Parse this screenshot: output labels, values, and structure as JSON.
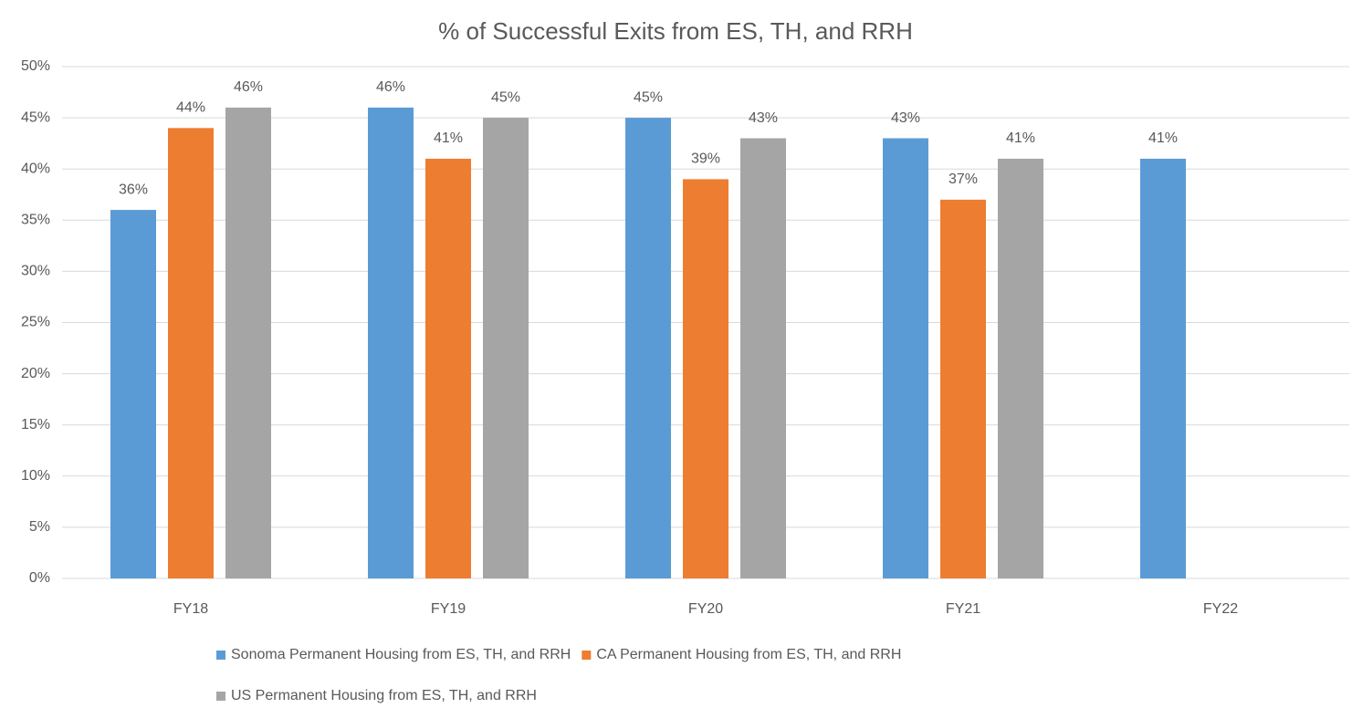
{
  "chart_data": {
    "type": "bar",
    "title": "% of Successful Exits from ES, TH, and RRH",
    "categories": [
      "FY18",
      "FY19",
      "FY20",
      "FY21",
      "FY22"
    ],
    "series": [
      {
        "name": "Sonoma Permanent Housing from ES, TH, and RRH",
        "color": "#5b9bd5",
        "values": [
          36,
          46,
          45,
          43,
          41
        ],
        "value_labels": [
          "36%",
          "46%",
          "45%",
          "43%",
          "41%"
        ]
      },
      {
        "name": "CA Permanent Housing from ES, TH, and RRH",
        "color": "#ed7d31",
        "values": [
          44,
          41,
          39,
          37,
          null
        ],
        "value_labels": [
          "44%",
          "41%",
          "39%",
          "37%",
          null
        ]
      },
      {
        "name": "US Permanent Housing from ES, TH, and RRH",
        "color": "#a5a5a5",
        "values": [
          46,
          45,
          43,
          41,
          null
        ],
        "value_labels": [
          "46%",
          "45%",
          "43%",
          "41%",
          null
        ]
      }
    ],
    "ylim": [
      0,
      50
    ],
    "yticks": [
      {
        "value": 0,
        "label": "0%"
      },
      {
        "value": 5,
        "label": "5%"
      },
      {
        "value": 10,
        "label": "10%"
      },
      {
        "value": 15,
        "label": "15%"
      },
      {
        "value": 20,
        "label": "20%"
      },
      {
        "value": 25,
        "label": "25%"
      },
      {
        "value": 30,
        "label": "30%"
      },
      {
        "value": 35,
        "label": "35%"
      },
      {
        "value": 40,
        "label": "40%"
      },
      {
        "value": 45,
        "label": "45%"
      },
      {
        "value": 50,
        "label": "50%"
      }
    ],
    "grid": true
  }
}
